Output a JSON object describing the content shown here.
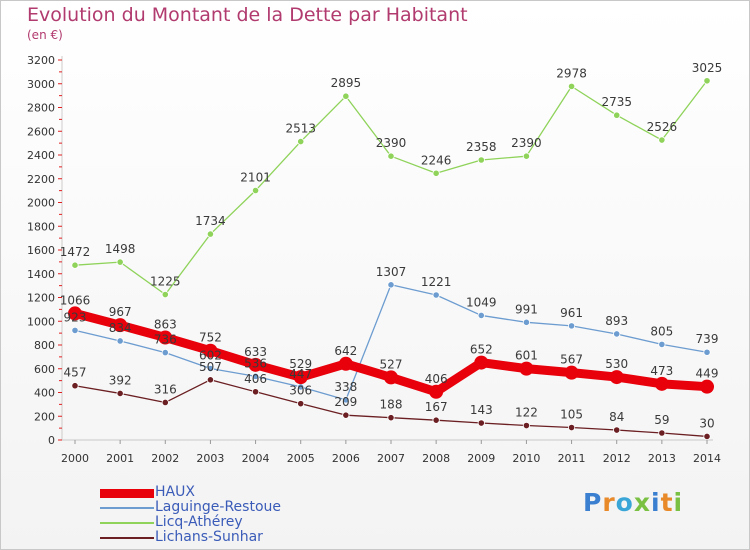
{
  "title": "Evolution du Montant de la Dette par Habitant",
  "subtitle": "(en €)",
  "logo": "Proxiti",
  "chart_data": {
    "type": "line",
    "title": "Evolution du Montant de la Dette par Habitant",
    "ylabel": "(en €)",
    "xlabel": "",
    "x": [
      "2000",
      "2001",
      "2002",
      "2003",
      "2004",
      "2005",
      "2006",
      "2007",
      "2008",
      "2009",
      "2010",
      "2011",
      "2012",
      "2013",
      "2014"
    ],
    "ylim": [
      0,
      3200
    ],
    "yticks": [
      0,
      200,
      400,
      600,
      800,
      1000,
      1200,
      1400,
      1600,
      1800,
      2000,
      2200,
      2400,
      2600,
      2800,
      3000,
      3200
    ],
    "grid": false,
    "legend_position": "bottom-left",
    "series": [
      {
        "name": "HAUX",
        "color": "#e8000b",
        "values": [
          1066,
          967,
          863,
          752,
          633,
          529,
          642,
          527,
          406,
          652,
          601,
          567,
          530,
          473,
          449
        ]
      },
      {
        "name": "Laguinge-Restoue",
        "color": "#6c9cd0",
        "values": [
          923,
          834,
          736,
          602,
          536,
          447,
          338,
          1307,
          1221,
          1049,
          991,
          961,
          893,
          805,
          739
        ]
      },
      {
        "name": "Licq-Athérey",
        "color": "#8fd35a",
        "values": [
          1472,
          1498,
          1225,
          1734,
          2101,
          2513,
          2895,
          2390,
          2246,
          2358,
          2390,
          2978,
          2735,
          2526,
          3025
        ]
      },
      {
        "name": "Lichans-Sunhar",
        "color": "#6b1f22",
        "values": [
          457,
          392,
          316,
          507,
          406,
          306,
          209,
          188,
          167,
          143,
          122,
          105,
          84,
          59,
          30
        ]
      }
    ]
  }
}
